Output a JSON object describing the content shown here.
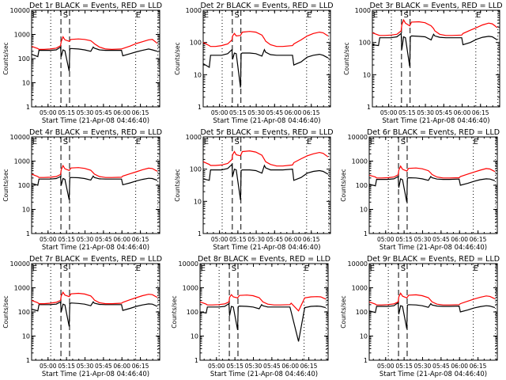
{
  "chart_data": {
    "type": "line",
    "layout": "3x3 grid",
    "shared": {
      "xlabel": "Start Time (21-Apr-08 04:46:40)",
      "ylabel": "Counts/sec",
      "x_start": "04:46:40",
      "x_range_minutes": [
        0,
        104
      ],
      "xticks": [
        "05:00",
        "05:15",
        "05:30",
        "05:45",
        "06:00",
        "06:15"
      ],
      "xtick_minutes": [
        13.33,
        28.33,
        43.33,
        58.33,
        73.33,
        88.33
      ],
      "yscale": "log",
      "grid": false,
      "legend": "in title",
      "series_colors": {
        "Events": "#000000",
        "LLD": "#ff0000"
      },
      "markers": {
        "dotted_minutes": [
          15.5,
          84.5,
          102.5
        ],
        "dashed_minutes": [
          23.8,
          30.8
        ],
        "labels": [
          {
            "text": "E",
            "minute": 0.5
          },
          {
            "text": "S",
            "minute": 25.5
          },
          {
            "text": "E",
            "minute": 84.5
          }
        ]
      },
      "x_sample_minutes": [
        0,
        5,
        6,
        10,
        15,
        20,
        23.5,
        24,
        25.5,
        27,
        30.5,
        31,
        32,
        38,
        43,
        48,
        50,
        51,
        55,
        60,
        65,
        73,
        74,
        80,
        85,
        90,
        95,
        98,
        102
      ]
    },
    "panels": [
      {
        "title": "Det 1r BLACK = Events, RED = LLD",
        "ylim": [
          1,
          10000
        ],
        "yticks": [
          "1",
          "10",
          "100",
          "1000",
          "10000"
        ],
        "series": [
          {
            "name": "Events",
            "values": [
              150,
              120,
              220,
              220,
              220,
              230,
              300,
              120,
              230,
              210,
              30,
              250,
              260,
              250,
              230,
              200,
              300,
              270,
              230,
              220,
              220,
              220,
              130,
              160,
              190,
              220,
              250,
              230,
              200
            ]
          },
          {
            "name": "LLD",
            "values": [
              320,
              260,
              240,
              240,
              250,
              270,
              340,
              500,
              800,
              600,
              520,
              560,
              620,
              650,
              620,
              550,
              460,
              410,
              300,
              250,
              240,
              250,
              260,
              330,
              420,
              500,
              600,
              620,
              430
            ]
          }
        ]
      },
      {
        "title": "Det 2r BLACK = Events, RED = LLD",
        "ylim": [
          1,
          1000
        ],
        "yticks": [
          "1",
          "10",
          "100",
          "1000"
        ],
        "series": [
          {
            "name": "Events",
            "values": [
              22,
              17,
              40,
              40,
              40,
              45,
              60,
              30,
              47,
              45,
              4,
              45,
              47,
              47,
              45,
              38,
              60,
              50,
              42,
              40,
              40,
              40,
              20,
              25,
              35,
              40,
              43,
              40,
              33
            ]
          },
          {
            "name": "LLD",
            "values": [
              100,
              80,
              75,
              75,
              80,
              90,
              120,
              160,
              190,
              160,
              165,
              180,
              210,
              220,
              210,
              170,
              130,
              110,
              85,
              75,
              75,
              80,
              90,
              120,
              160,
              190,
              210,
              200,
              160
            ]
          }
        ]
      },
      {
        "title": "Det 3r BLACK = Events, RED = LLD",
        "ylim": [
          1,
          1000
        ],
        "yticks": [
          "1",
          "10",
          "100",
          "1000"
        ],
        "series": [
          {
            "name": "Events",
            "values": [
              85,
              80,
              140,
              140,
              140,
              150,
              190,
              60,
              150,
              140,
              18,
              150,
              160,
              155,
              150,
              120,
              180,
              160,
              145,
              140,
              140,
              140,
              85,
              100,
              125,
              145,
              155,
              150,
              120
            ]
          },
          {
            "name": "LLD",
            "values": [
              200,
              170,
              165,
              165,
              170,
              180,
              230,
              350,
              500,
              400,
              330,
              360,
              430,
              440,
              410,
              330,
              270,
              230,
              180,
              165,
              165,
              170,
              190,
              240,
              290,
              350,
              400,
              380,
              290
            ]
          }
        ]
      },
      {
        "title": "Det 4r BLACK = Events, RED = LLD",
        "ylim": [
          1,
          10000
        ],
        "yticks": [
          "1",
          "10",
          "100",
          "1000",
          "10000"
        ],
        "series": [
          {
            "name": "Events",
            "values": [
              120,
              100,
              180,
              180,
              180,
              190,
              230,
              100,
              190,
              175,
              25,
              200,
              210,
              205,
              190,
              165,
              240,
              210,
              185,
              180,
              180,
              180,
              105,
              125,
              150,
              175,
              195,
              190,
              160
            ]
          },
          {
            "name": "LLD",
            "values": [
              290,
              230,
              210,
              210,
              215,
              230,
              280,
              430,
              650,
              480,
              410,
              440,
              520,
              540,
              500,
              420,
              330,
              290,
              230,
              210,
              210,
              215,
              240,
              300,
              360,
              440,
              510,
              490,
              380
            ]
          }
        ]
      },
      {
        "title": "Det 5r BLACK = Events, RED = LLD",
        "ylim": [
          1,
          1000
        ],
        "yticks": [
          "1",
          "10",
          "100",
          "1000"
        ],
        "series": [
          {
            "name": "Events",
            "values": [
              50,
              45,
              95,
              95,
              95,
              105,
              140,
              60,
              100,
              95,
              11,
              90,
              95,
              95,
              90,
              75,
              130,
              110,
              95,
              95,
              95,
              100,
              45,
              55,
              75,
              85,
              90,
              85,
              70
            ]
          },
          {
            "name": "LLD",
            "values": [
              170,
              140,
              130,
              130,
              135,
              150,
              200,
              280,
              350,
              280,
              260,
              290,
              350,
              370,
              340,
              270,
              200,
              170,
              140,
              125,
              125,
              135,
              160,
              210,
              260,
              300,
              330,
              310,
              240
            ]
          }
        ]
      },
      {
        "title": "Det 6r BLACK = Events, RED = LLD",
        "ylim": [
          1,
          10000
        ],
        "yticks": [
          "1",
          "10",
          "100",
          "1000",
          "10000"
        ],
        "series": [
          {
            "name": "Events",
            "values": [
              110,
              95,
              175,
              175,
              175,
              185,
              230,
              80,
              185,
              170,
              20,
              195,
              205,
              200,
              185,
              160,
              230,
              205,
              180,
              175,
              175,
              180,
              100,
              120,
              145,
              170,
              185,
              180,
              155
            ]
          },
          {
            "name": "LLD",
            "values": [
              260,
              220,
              200,
              200,
              205,
              220,
              270,
              420,
              620,
              460,
              390,
              420,
              500,
              520,
              480,
              400,
              320,
              280,
              220,
              200,
              200,
              205,
              230,
              290,
              350,
              420,
              490,
              470,
              370
            ]
          }
        ]
      },
      {
        "title": "Det 7r BLACK = Events, RED = LLD",
        "ylim": [
          1,
          10000
        ],
        "yticks": [
          "1",
          "10",
          "100",
          "1000",
          "10000"
        ],
        "series": [
          {
            "name": "Events",
            "values": [
              130,
              110,
              200,
              200,
              200,
              210,
              260,
              100,
              210,
              195,
              25,
              220,
              235,
              225,
              210,
              180,
              260,
              230,
              205,
              200,
              200,
              200,
              115,
              140,
              170,
              195,
              215,
              210,
              170
            ]
          },
          {
            "name": "LLD",
            "values": [
              300,
              240,
              220,
              220,
              230,
              250,
              300,
              460,
              650,
              500,
              430,
              470,
              560,
              590,
              550,
              460,
              360,
              310,
              240,
              220,
              220,
              230,
              250,
              320,
              390,
              470,
              540,
              520,
              400
            ]
          }
        ]
      },
      {
        "title": "Det 8r BLACK = Events, RED = LLD",
        "ylim": [
          1,
          10000
        ],
        "yticks": [
          "1",
          "10",
          "100",
          "1000",
          "10000"
        ],
        "series": [
          {
            "name": "Events",
            "values": [
              100,
              90,
              160,
              160,
              160,
              170,
              220,
              70,
              170,
              160,
              18,
              165,
              175,
              170,
              160,
              135,
              200,
              180,
              160,
              160,
              160,
              160,
              100,
              6,
              150,
              170,
              175,
              170,
              150
            ]
          },
          {
            "name": "LLD",
            "values": [
              260,
              210,
              195,
              195,
              200,
              215,
              260,
              400,
              520,
              420,
              380,
              410,
              480,
              500,
              470,
              390,
              300,
              260,
              210,
              195,
              195,
              200,
              230,
              110,
              380,
              420,
              430,
              420,
              340
            ]
          }
        ]
      },
      {
        "title": "Det 9r BLACK = Events, RED = LLD",
        "ylim": [
          1,
          10000
        ],
        "yticks": [
          "1",
          "10",
          "100",
          "1000",
          "10000"
        ],
        "series": [
          {
            "name": "Events",
            "values": [
              110,
              95,
              170,
              170,
              170,
              180,
              240,
              80,
              180,
              170,
              20,
              190,
              200,
              195,
              180,
              155,
              220,
              195,
              175,
              170,
              170,
              175,
              100,
              120,
              145,
              165,
              180,
              175,
              150
            ]
          },
          {
            "name": "LLD",
            "values": [
              260,
              210,
              195,
              195,
              200,
              215,
              260,
              420,
              600,
              450,
              380,
              410,
              490,
              510,
              470,
              390,
              300,
              260,
              210,
              195,
              195,
              200,
              220,
              280,
              340,
              400,
              460,
              440,
              350
            ]
          }
        ]
      }
    ]
  }
}
